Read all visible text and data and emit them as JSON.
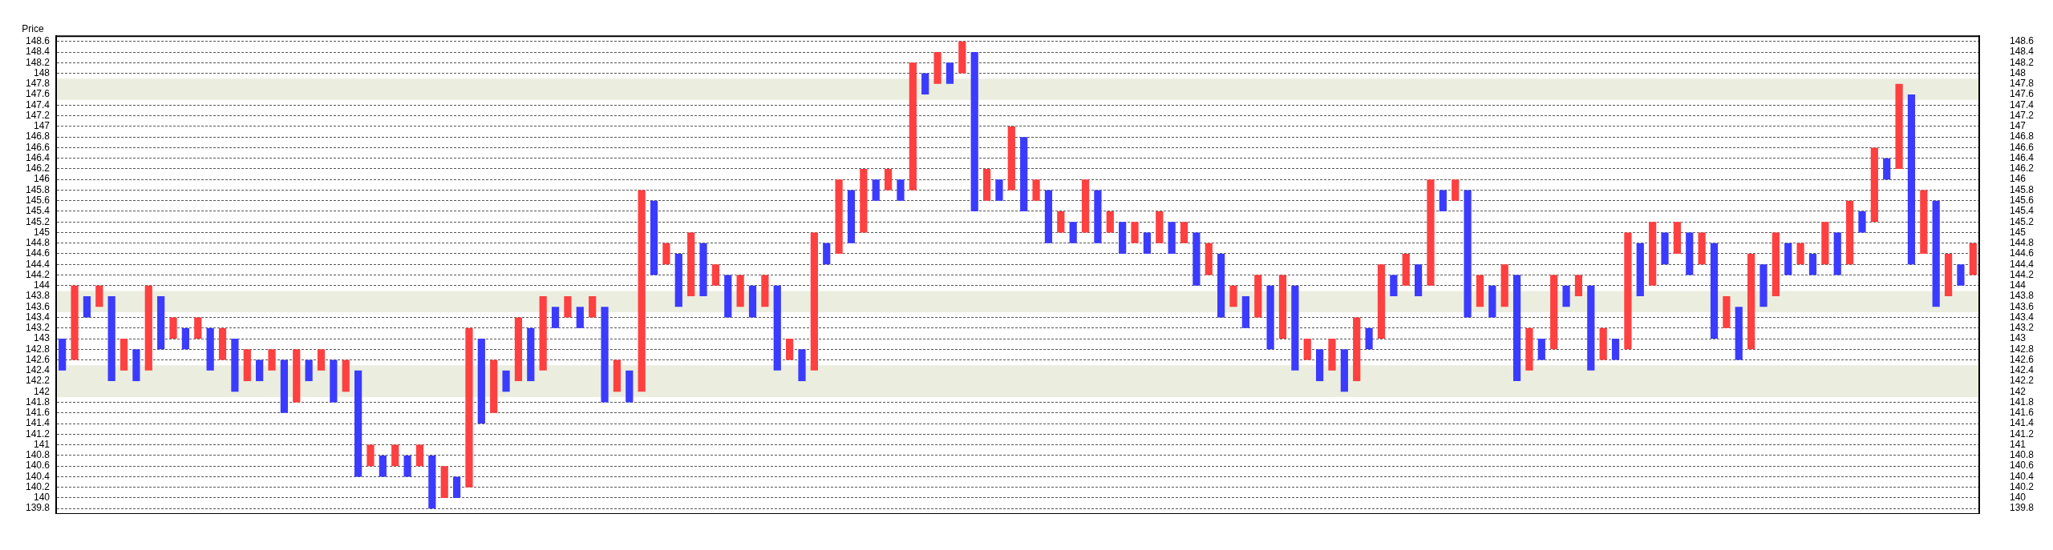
{
  "chart_data": {
    "type": "bar",
    "ylabel": "Price",
    "categories": [
      null,
      null,
      null,
      null,
      null,
      null,
      null,
      null,
      null,
      null,
      null,
      null,
      null,
      null,
      null,
      null,
      null,
      null,
      null,
      null,
      null,
      null,
      null,
      null,
      null,
      null,
      null,
      null,
      null,
      null,
      null,
      null,
      null,
      null,
      null,
      null,
      null,
      null,
      null,
      null,
      null,
      null,
      null,
      null,
      null,
      null,
      null,
      null,
      null,
      null,
      null,
      null,
      null,
      null,
      null,
      null,
      null,
      null,
      null,
      null,
      null,
      null,
      null,
      null,
      null,
      null,
      null,
      null,
      null,
      null,
      null,
      null,
      null,
      null,
      null,
      null,
      null,
      null,
      null,
      null,
      null,
      null,
      null,
      null,
      null,
      null,
      null,
      null,
      null,
      null,
      null,
      null,
      null,
      null,
      null,
      null,
      null,
      null,
      null,
      null,
      null,
      null,
      null,
      null,
      null,
      null,
      null,
      null,
      null,
      null,
      null,
      null,
      null,
      null,
      null,
      null,
      null,
      null,
      null,
      null,
      null,
      null,
      null,
      null,
      null,
      null,
      null,
      null,
      null,
      null,
      null,
      null,
      null,
      null,
      null,
      null,
      null,
      null,
      null,
      null,
      null,
      null,
      null,
      null,
      null,
      null,
      null,
      null,
      null,
      null,
      null,
      null,
      null,
      null,
      null,
      null
    ],
    "series": [
      {
        "color": "#3b3bff",
        "base": [
          142.4,
          null,
          143.4,
          null,
          142.2,
          null,
          142.2,
          null,
          142.8,
          null,
          142.8,
          null,
          142.4,
          null,
          142.0,
          null,
          142.2,
          null,
          141.6,
          null,
          142.2,
          null,
          141.8,
          null,
          140.4,
          null,
          140.4,
          null,
          140.4,
          null,
          139.8,
          null,
          140.0,
          null,
          141.4,
          null,
          142.0,
          null,
          142.2,
          null,
          143.2,
          null,
          143.2,
          null,
          141.8,
          null,
          141.8,
          null,
          144.2,
          null,
          143.6,
          null,
          143.8,
          null,
          143.4,
          null,
          143.4,
          null,
          142.4,
          null,
          142.2,
          null,
          144.4,
          null,
          144.8,
          null,
          145.6,
          null,
          145.6,
          null,
          147.6,
          null,
          147.8,
          null,
          145.4,
          null,
          145.6,
          null,
          145.4,
          null,
          144.8,
          null,
          144.8,
          null,
          144.8,
          null,
          144.6,
          null,
          144.6,
          null,
          144.6,
          null,
          144.0,
          null,
          143.4,
          null,
          143.2,
          null,
          142.8,
          null,
          142.4,
          null,
          142.2,
          null,
          142.0,
          null,
          142.8,
          null,
          143.8,
          null,
          143.8,
          null,
          145.4,
          null,
          143.4,
          null,
          143.4,
          null,
          142.2,
          null,
          142.6,
          null,
          143.6,
          null,
          142.4,
          null,
          142.6,
          null,
          143.8,
          null,
          144.4,
          null,
          144.2,
          null,
          143.0,
          null,
          142.6,
          null,
          143.6,
          null,
          144.2,
          null,
          144.2,
          null,
          144.2,
          null,
          145.0,
          null,
          146.0,
          null,
          144.4,
          null,
          143.6,
          null,
          144.0,
          null
        ],
        "values": [
          0.6,
          null,
          0.4,
          null,
          1.6,
          null,
          0.6,
          null,
          1.0,
          null,
          0.4,
          null,
          0.8,
          null,
          1.0,
          null,
          0.4,
          null,
          1.0,
          null,
          0.4,
          null,
          0.8,
          null,
          2.0,
          null,
          0.4,
          null,
          0.4,
          null,
          1.0,
          null,
          0.4,
          null,
          1.6,
          null,
          0.4,
          null,
          1.0,
          null,
          0.4,
          null,
          0.4,
          null,
          1.8,
          null,
          0.6,
          null,
          1.4,
          null,
          1.0,
          null,
          1.0,
          null,
          0.8,
          null,
          0.6,
          null,
          1.6,
          null,
          0.6,
          null,
          0.4,
          null,
          1.0,
          null,
          0.4,
          null,
          0.4,
          null,
          0.4,
          null,
          0.4,
          null,
          3.0,
          null,
          0.4,
          null,
          1.4,
          null,
          1.0,
          null,
          0.4,
          null,
          1.0,
          null,
          0.6,
          null,
          0.4,
          null,
          0.6,
          null,
          1.0,
          null,
          1.2,
          null,
          0.6,
          null,
          1.2,
          null,
          1.6,
          null,
          0.6,
          null,
          0.8,
          null,
          0.4,
          null,
          0.4,
          null,
          0.6,
          null,
          0.4,
          null,
          2.4,
          null,
          0.6,
          null,
          2.0,
          null,
          0.4,
          null,
          0.4,
          null,
          1.6,
          null,
          0.4,
          null,
          1.0,
          null,
          0.6,
          null,
          0.8,
          null,
          1.8,
          null,
          1.0,
          null,
          0.8,
          null,
          0.6,
          null,
          0.4,
          null,
          0.8,
          null,
          0.4,
          null,
          0.4,
          null,
          3.2,
          null,
          2.0,
          null,
          0.4,
          null
        ]
      },
      {
        "color": "#ff4040",
        "base": [
          null,
          142.6,
          null,
          143.6,
          null,
          142.4,
          null,
          142.4,
          null,
          143.0,
          null,
          143.0,
          null,
          142.6,
          null,
          142.2,
          null,
          142.4,
          null,
          141.8,
          null,
          142.4,
          null,
          142.0,
          null,
          140.6,
          null,
          140.6,
          null,
          140.6,
          null,
          140.0,
          null,
          140.2,
          null,
          141.6,
          null,
          142.2,
          null,
          142.4,
          null,
          143.4,
          null,
          143.4,
          null,
          142.0,
          null,
          142.0,
          null,
          144.4,
          null,
          143.8,
          null,
          144.0,
          null,
          143.6,
          null,
          143.6,
          null,
          142.6,
          null,
          142.4,
          null,
          144.6,
          null,
          145.0,
          null,
          145.8,
          null,
          145.8,
          null,
          147.8,
          null,
          148.0,
          null,
          145.6,
          null,
          145.8,
          null,
          145.6,
          null,
          145.0,
          null,
          145.0,
          null,
          145.0,
          null,
          144.8,
          null,
          144.8,
          null,
          144.8,
          null,
          144.2,
          null,
          143.6,
          null,
          143.4,
          null,
          143.0,
          null,
          142.6,
          null,
          142.4,
          null,
          142.2,
          null,
          143.0,
          null,
          144.0,
          null,
          144.0,
          null,
          145.6,
          null,
          143.6,
          null,
          143.6,
          null,
          142.4,
          null,
          142.8,
          null,
          143.8,
          null,
          142.6,
          null,
          142.8,
          null,
          144.0,
          null,
          144.6,
          null,
          144.4,
          null,
          143.2,
          null,
          142.8,
          null,
          143.8,
          null,
          144.4,
          null,
          144.4,
          null,
          144.4,
          null,
          145.2,
          null,
          146.2,
          null,
          144.6,
          null,
          143.8,
          null,
          144.2
        ],
        "values": [
          null,
          1.4,
          null,
          0.4,
          null,
          0.6,
          null,
          1.6,
          null,
          0.4,
          null,
          0.4,
          null,
          0.6,
          null,
          0.6,
          null,
          0.4,
          null,
          1.0,
          null,
          0.4,
          null,
          0.6,
          null,
          0.4,
          null,
          0.4,
          null,
          0.4,
          null,
          0.6,
          null,
          3.0,
          null,
          1.0,
          null,
          1.2,
          null,
          1.4,
          null,
          0.4,
          null,
          0.4,
          null,
          0.6,
          null,
          3.8,
          null,
          0.4,
          null,
          1.2,
          null,
          0.4,
          null,
          0.6,
          null,
          0.6,
          null,
          0.4,
          null,
          2.6,
          null,
          1.4,
          null,
          1.2,
          null,
          0.4,
          null,
          2.4,
          null,
          0.6,
          null,
          0.6,
          null,
          0.6,
          null,
          1.2,
          null,
          0.4,
          null,
          0.4,
          null,
          1.0,
          null,
          0.4,
          null,
          0.4,
          null,
          0.6,
          null,
          0.4,
          null,
          0.6,
          null,
          0.4,
          null,
          0.8,
          null,
          1.2,
          null,
          0.4,
          null,
          0.6,
          null,
          1.2,
          null,
          1.4,
          null,
          0.6,
          null,
          2.0,
          null,
          0.4,
          null,
          0.6,
          null,
          0.8,
          null,
          0.8,
          null,
          1.4,
          null,
          0.4,
          null,
          0.6,
          null,
          2.2,
          null,
          1.2,
          null,
          0.6,
          null,
          0.6,
          null,
          0.6,
          null,
          1.8,
          null,
          1.2,
          null,
          0.4,
          null,
          0.8,
          null,
          1.2,
          null,
          1.4,
          null,
          1.6,
          null,
          1.2,
          null,
          0.8,
          null,
          0.6
        ]
      }
    ],
    "ylim": [
      139.7,
      148.7
    ],
    "yticks": [
      139.8,
      140,
      140.2,
      140.4,
      140.6,
      140.8,
      141,
      141.2,
      141.4,
      141.6,
      141.8,
      142,
      142.2,
      142.4,
      142.6,
      142.8,
      143,
      143.2,
      143.4,
      143.6,
      143.8,
      144,
      144.2,
      144.4,
      144.6,
      144.8,
      145,
      145.2,
      145.4,
      145.6,
      145.8,
      146,
      146.2,
      146.4,
      146.6,
      146.8,
      147,
      147.2,
      147.4,
      147.6,
      147.8,
      148,
      148.2,
      148.4,
      148.6
    ],
    "y2lim": [
      139.7,
      148.7
    ],
    "y2ticks": [
      139.8,
      140,
      140.2,
      140.4,
      140.6,
      140.8,
      141,
      141.2,
      141.4,
      141.6,
      141.8,
      142,
      142.2,
      142.4,
      142.6,
      142.8,
      143,
      143.2,
      143.4,
      143.6,
      143.8,
      144,
      144.2,
      144.4,
      144.6,
      144.8,
      145,
      145.2,
      145.4,
      145.6,
      145.8,
      146,
      146.2,
      146.4,
      146.6,
      146.8,
      147,
      147.2,
      147.4,
      147.6,
      147.8,
      148,
      148.2,
      148.4,
      148.6
    ],
    "bands": [
      {
        "axis": "y",
        "from": 141.9,
        "to": 142.5,
        "color": "#ebeedf"
      },
      {
        "axis": "y",
        "from": 143.5,
        "to": 143.9,
        "color": "#ebeedf"
      },
      {
        "axis": "y",
        "from": 147.5,
        "to": 147.9,
        "color": "#ebeedf"
      }
    ],
    "grid": "y",
    "tick_labels": "y",
    "legend": false
  }
}
